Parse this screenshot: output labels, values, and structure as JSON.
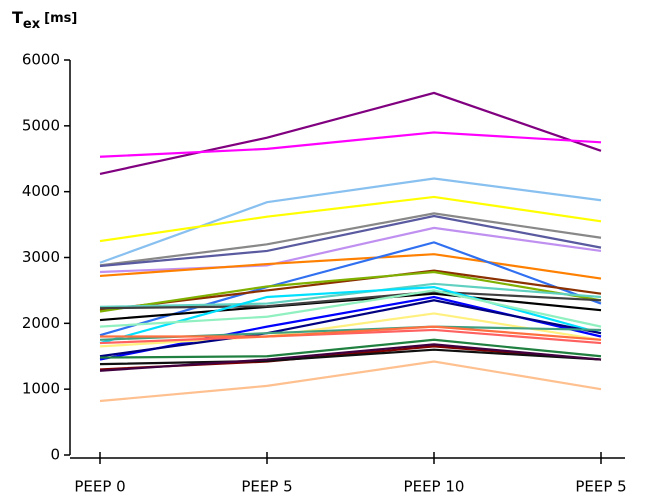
{
  "chart_data": {
    "type": "line",
    "y_label": {
      "main": "T",
      "sub": "ex",
      "unit": "[ms]"
    },
    "categories": [
      "PEEP 0",
      "PEEP 5",
      "PEEP 10",
      "PEEP 5"
    ],
    "ylim": [
      0,
      6000
    ],
    "yticks": [
      0,
      1000,
      2000,
      3000,
      4000,
      5000,
      6000
    ],
    "grid": false,
    "series": [
      {
        "color": "#800080",
        "values": [
          4270,
          4820,
          5500,
          4620
        ]
      },
      {
        "color": "#ff00ff",
        "values": [
          4530,
          4650,
          4900,
          4750
        ]
      },
      {
        "color": "#88c0f0",
        "values": [
          2920,
          3840,
          4200,
          3870
        ]
      },
      {
        "color": "#ffff00",
        "values": [
          3250,
          3620,
          3920,
          3550
        ]
      },
      {
        "color": "#888888",
        "values": [
          2880,
          3200,
          3670,
          3300
        ]
      },
      {
        "color": "#5a5aa0",
        "values": [
          2870,
          3100,
          3630,
          3150
        ]
      },
      {
        "color": "#c090f0",
        "values": [
          2780,
          2880,
          3450,
          3100
        ]
      },
      {
        "color": "#ff8000",
        "values": [
          2720,
          2900,
          3050,
          2680
        ]
      },
      {
        "color": "#3070f0",
        "values": [
          1820,
          2550,
          3230,
          2300
        ]
      },
      {
        "color": "#8b3000",
        "values": [
          2200,
          2500,
          2800,
          2450
        ]
      },
      {
        "color": "#80b000",
        "values": [
          2180,
          2560,
          2780,
          2350
        ]
      },
      {
        "color": "#60d0c0",
        "values": [
          2250,
          2300,
          2600,
          2400
        ]
      },
      {
        "color": "#000000",
        "values": [
          2050,
          2250,
          2450,
          2200
        ]
      },
      {
        "color": "#404040",
        "values": [
          2230,
          2260,
          2480,
          2350
        ]
      },
      {
        "color": "#0000ff",
        "values": [
          1450,
          1950,
          2400,
          1800
        ]
      },
      {
        "color": "#00e0ff",
        "values": [
          1700,
          2400,
          2550,
          1850
        ]
      },
      {
        "color": "#90f0c0",
        "values": [
          1950,
          2100,
          2500,
          1950
        ]
      },
      {
        "color": "#fff080",
        "values": [
          1650,
          1800,
          2150,
          1750
        ]
      },
      {
        "color": "#000080",
        "values": [
          1500,
          1850,
          2350,
          1850
        ]
      },
      {
        "color": "#40a080",
        "values": [
          1750,
          1850,
          1950,
          1900
        ]
      },
      {
        "color": "#ff6060",
        "values": [
          1700,
          1800,
          1900,
          1700
        ]
      },
      {
        "color": "#ff7040",
        "values": [
          1800,
          1800,
          1950,
          1750
        ]
      },
      {
        "color": "#208040",
        "values": [
          1480,
          1500,
          1750,
          1500
        ]
      },
      {
        "color": "#800000",
        "values": [
          1300,
          1420,
          1650,
          1450
        ]
      },
      {
        "color": "#101010",
        "values": [
          1380,
          1430,
          1600,
          1450
        ]
      },
      {
        "color": "#400040",
        "values": [
          1280,
          1450,
          1680,
          1450
        ]
      },
      {
        "color": "#ffc090",
        "values": [
          820,
          1050,
          1420,
          1000
        ]
      }
    ]
  }
}
